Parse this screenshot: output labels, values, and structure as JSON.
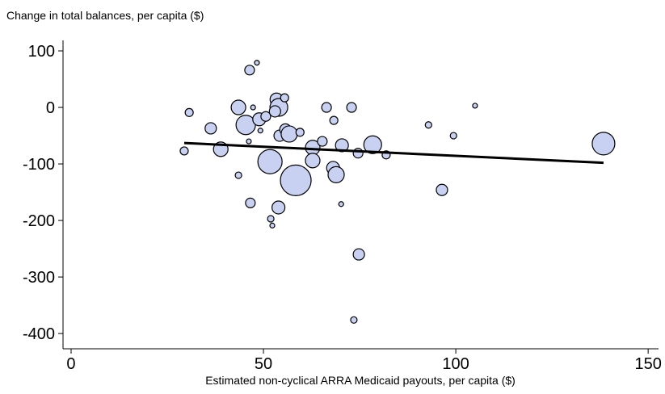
{
  "chart_data": {
    "type": "bubble",
    "y_label": "Change in total balances, per capita ($)",
    "x_label": "Estimated non-cyclical ARRA Medicaid payouts, per capita ($)",
    "x": [
      29.4,
      30.7,
      36.3,
      38.9,
      43.5,
      43.5,
      45.4,
      46.4,
      46.2,
      46.6,
      47.3,
      48.3,
      48.9,
      49.2,
      50.6,
      51.7,
      51.9,
      53.9,
      52.3,
      53.4,
      54.2,
      54.0,
      55.5,
      55.7,
      56.7,
      58.4,
      53.0,
      59.5,
      62.8,
      62.8,
      65.3,
      66.4,
      68.3,
      68.1,
      68.9,
      70.2,
      70.4,
      72.9,
      73.5,
      74.8,
      74.6,
      78.4,
      81.9,
      92.9,
      96.4,
      99.4,
      105.0,
      138.4
    ],
    "y": [
      -77,
      -9,
      -37,
      -74,
      -120,
      0,
      -31,
      66,
      -60,
      -169,
      0,
      79,
      -21,
      -41,
      -16,
      -96,
      -197,
      -177,
      -209,
      14,
      -50,
      0,
      17,
      -39,
      -47,
      -129,
      -7,
      -44,
      -71,
      -94,
      -60,
      0,
      -23,
      -107,
      -119,
      -171,
      -67,
      0,
      -376,
      -260,
      -81,
      -66,
      -84,
      -31,
      -146,
      -50,
      3,
      -64
    ],
    "sizes": [
      5,
      5,
      7,
      9,
      4,
      9,
      12,
      6,
      3,
      6,
      3,
      3,
      8,
      3,
      6,
      15,
      4,
      8,
      3,
      8,
      7,
      11,
      5,
      7,
      10,
      19,
      7,
      5,
      9,
      9,
      6,
      6,
      5,
      8,
      10,
      3,
      8,
      6,
      4,
      7,
      6,
      11,
      5,
      4,
      7,
      4,
      3,
      14
    ],
    "color": "#c9d1f2",
    "trend_line": {
      "x": [
        29.4,
        138.4
      ],
      "y": [
        -63,
        -98
      ],
      "color": "#000000"
    },
    "xlim": [
      -2.1,
      152.7
    ],
    "ylim": [
      -427,
      118.6
    ],
    "xticks": [
      0,
      50,
      100,
      150
    ],
    "yticks": [
      100,
      0,
      -100,
      -200,
      -300,
      -400
    ]
  }
}
